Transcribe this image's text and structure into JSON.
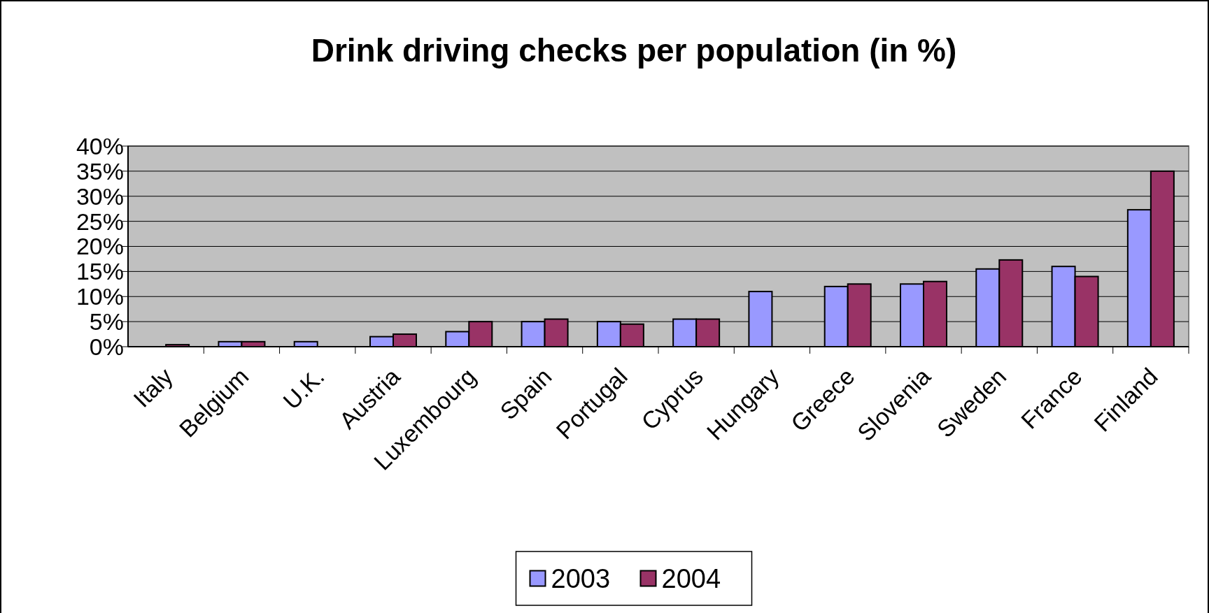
{
  "chart_data": {
    "type": "bar",
    "title": "Drink driving checks per population (in %)",
    "categories": [
      "Italy",
      "Belgium",
      "U.K.",
      "Austria",
      "Luxembourg",
      "Spain",
      "Portugal",
      "Cyprus",
      "Hungary",
      "Greece",
      "Slovenia",
      "Sweden",
      "France",
      "Finland"
    ],
    "series": [
      {
        "name": "2003",
        "color": "#9999ff",
        "values": [
          null,
          1,
          1,
          2,
          3,
          5,
          5,
          5.5,
          11,
          12,
          12.5,
          15.5,
          16,
          27.3
        ]
      },
      {
        "name": "2004",
        "color": "#993366",
        "values": [
          0.4,
          1,
          null,
          2.5,
          5,
          5.5,
          4.5,
          5.5,
          null,
          12.5,
          13,
          17.3,
          14,
          35
        ]
      }
    ],
    "ylim": [
      0,
      40
    ],
    "yticks": [
      {
        "value": 0,
        "label": "0%"
      },
      {
        "value": 5,
        "label": "5%"
      },
      {
        "value": 10,
        "label": "10%"
      },
      {
        "value": 15,
        "label": "15%"
      },
      {
        "value": 20,
        "label": "20%"
      },
      {
        "value": 25,
        "label": "25%"
      },
      {
        "value": 30,
        "label": "30%"
      },
      {
        "value": 35,
        "label": "35%"
      },
      {
        "value": 40,
        "label": "40%"
      }
    ],
    "grid": "y",
    "legend": "bottom"
  }
}
